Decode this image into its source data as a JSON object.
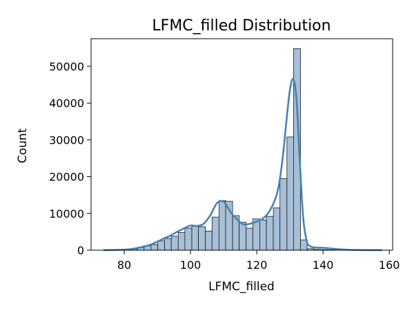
{
  "chart_data": {
    "type": "bar",
    "title": "LFMC_filled Distribution",
    "xlabel": "LFMC_filled",
    "ylabel": "Count",
    "xlim": [
      70,
      161
    ],
    "ylim": [
      0,
      57500
    ],
    "xticks": [
      80,
      100,
      120,
      140,
      160
    ],
    "yticks": [
      0,
      10000,
      20000,
      30000,
      40000,
      50000
    ],
    "grid": false,
    "bin_edges": [
      73.7,
      75.8,
      77.8,
      79.9,
      81.9,
      84.0,
      86.0,
      88.1,
      90.1,
      92.2,
      94.2,
      96.3,
      98.3,
      100.4,
      102.4,
      104.5,
      106.5,
      108.6,
      110.6,
      112.7,
      114.7,
      116.8,
      118.8,
      120.9,
      122.9,
      125.0,
      127.0,
      129.1,
      131.1,
      133.2,
      135.2,
      137.3,
      139.3,
      141.4,
      143.4,
      145.5,
      147.5,
      149.6,
      151.6,
      153.7,
      155.7,
      157.8
    ],
    "counts": [
      20,
      50,
      80,
      150,
      300,
      700,
      1200,
      1500,
      2500,
      3200,
      3800,
      4800,
      6000,
      6500,
      6400,
      5200,
      9000,
      13500,
      13300,
      9400,
      7600,
      6000,
      8500,
      8200,
      9200,
      11500,
      19500,
      30800,
      54800,
      2800,
      400,
      200,
      150,
      100,
      80,
      50,
      30,
      20,
      10,
      5,
      3
    ],
    "kde": {
      "x": [
        73.7,
        76,
        78,
        80,
        82,
        84,
        86,
        88,
        90,
        92,
        94,
        96,
        98,
        100,
        102,
        104,
        106,
        108,
        110,
        112,
        114,
        116,
        118,
        120,
        122,
        124,
        126,
        127,
        128,
        129,
        130,
        131,
        132,
        133,
        134,
        135,
        136,
        138,
        140,
        145,
        150,
        157.8
      ],
      "y": [
        20,
        40,
        80,
        150,
        300,
        600,
        1000,
        1500,
        2300,
        3200,
        4000,
        5000,
        5900,
        6700,
        6600,
        7200,
        9500,
        12800,
        13200,
        10500,
        8400,
        7000,
        7200,
        7800,
        8700,
        10800,
        15000,
        19500,
        26500,
        35500,
        43500,
        46500,
        41000,
        24000,
        9000,
        2800,
        1100,
        700,
        650,
        250,
        50,
        10
      ]
    },
    "colors": {
      "bar_fill": "#a7bfd7",
      "bar_edge": "#1a1a1a",
      "kde_line": "#4682b4",
      "axis": "#000000"
    }
  }
}
